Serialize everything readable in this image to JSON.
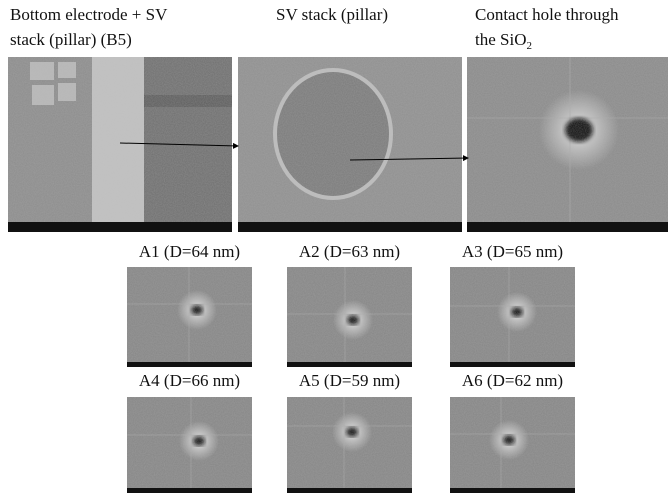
{
  "top_panels": [
    {
      "lines": [
        "Bottom electrode + SV",
        "stack (pillar) (B5)"
      ]
    },
    {
      "lines": [
        "SV stack (pillar)"
      ]
    },
    {
      "lines": [
        "Contact hole through",
        "the SiO"
      ],
      "subscript": "2"
    }
  ],
  "grid_panels": [
    {
      "label": "A1 (D=64 nm)"
    },
    {
      "label": "A2 (D=63 nm)"
    },
    {
      "label": "A3 (D=65 nm)"
    },
    {
      "label": "A4 (D=66 nm)"
    },
    {
      "label": "A5 (D=59 nm)"
    },
    {
      "label": "A6 (D=62 nm)"
    }
  ]
}
